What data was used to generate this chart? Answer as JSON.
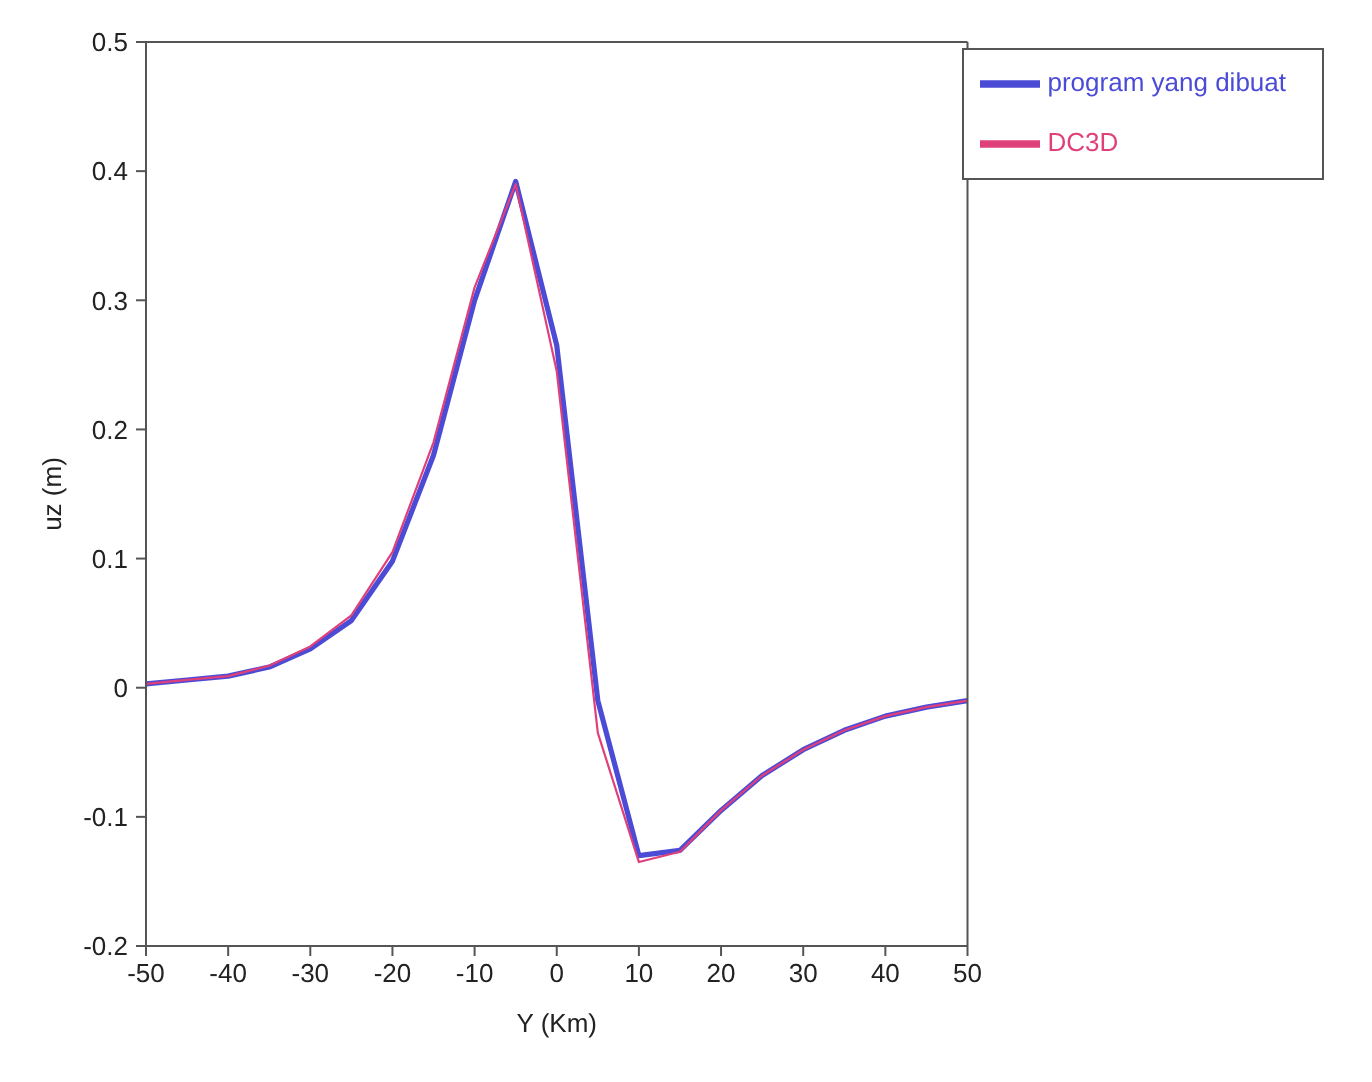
{
  "chart_data": {
    "type": "line",
    "xlabel": "Y (Km)",
    "ylabel": "uz (m)",
    "x": [
      -50,
      -45,
      -40,
      -35,
      -30,
      -25,
      -20,
      -15,
      -10,
      -5,
      0,
      5,
      10,
      15,
      20,
      25,
      30,
      35,
      40,
      45,
      50
    ],
    "series": [
      {
        "name": "program yang dibuat",
        "color": "#4b4bd6",
        "values": [
          0.003,
          0.006,
          0.009,
          0.016,
          0.03,
          0.052,
          0.098,
          0.18,
          0.3,
          0.392,
          0.265,
          -0.01,
          -0.13,
          -0.126,
          -0.095,
          -0.068,
          -0.048,
          -0.033,
          -0.022,
          -0.015,
          -0.01
        ]
      },
      {
        "name": "DC3D",
        "color": "#e0407a",
        "values": [
          0.003,
          0.006,
          0.009,
          0.017,
          0.032,
          0.056,
          0.105,
          0.19,
          0.31,
          0.39,
          0.245,
          -0.035,
          -0.135,
          -0.127,
          -0.095,
          -0.068,
          -0.048,
          -0.033,
          -0.022,
          -0.015,
          -0.01
        ]
      }
    ],
    "xlim": [
      -50,
      50
    ],
    "xticks": [
      -50,
      -40,
      -30,
      -20,
      -10,
      0,
      10,
      20,
      30,
      40,
      50
    ],
    "ylim": [
      -0.2,
      0.5
    ],
    "yticks": [
      -0.2,
      -0.1,
      0,
      0.1,
      0.2,
      0.3,
      0.4,
      0.5
    ],
    "grid": false,
    "legend": "top right",
    "marker": "none",
    "line_style": "solid"
  }
}
